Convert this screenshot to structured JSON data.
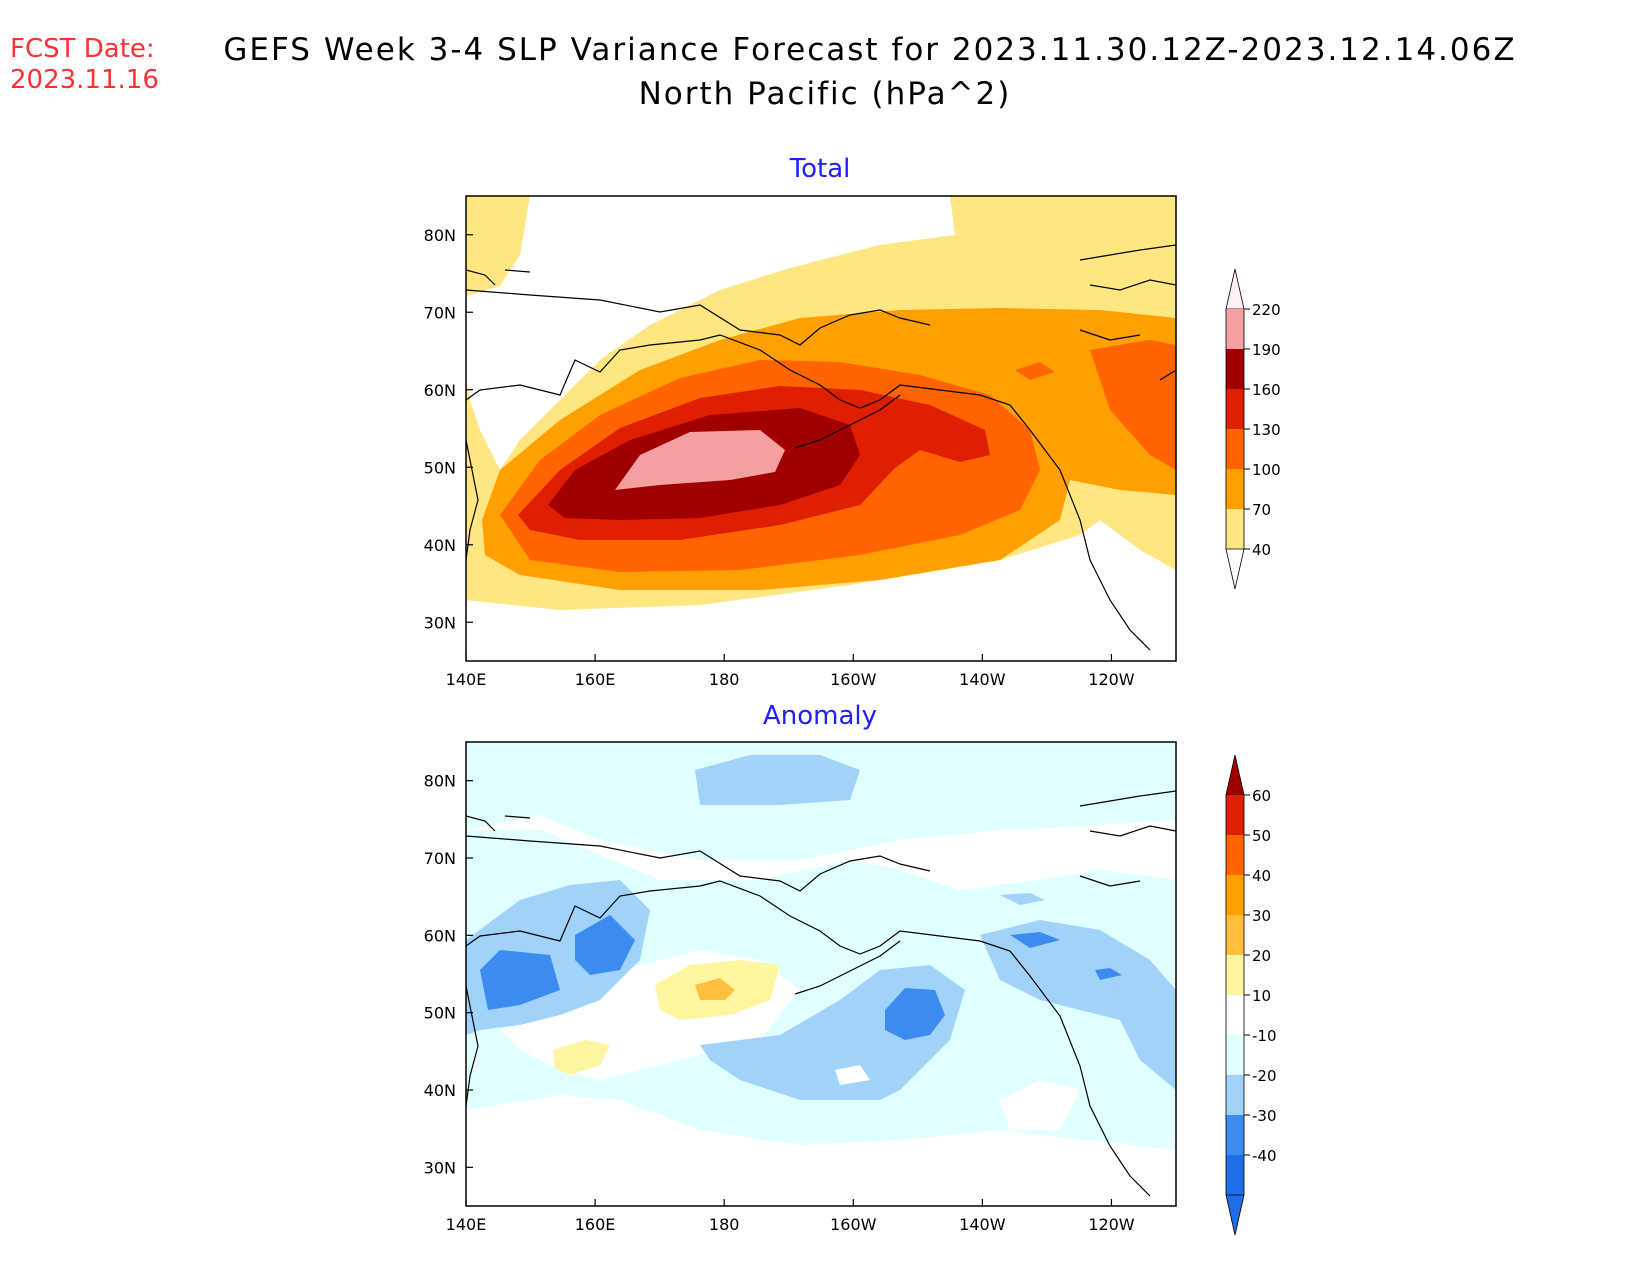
{
  "header": {
    "fcst_label": "FCST Date:",
    "fcst_date": "2023.11.16",
    "title": "GEFS Week 3-4 SLP Variance Forecast for 2023.11.30.12Z-2023.12.14.06Z",
    "subtitle": "North Pacific (hPa^2)"
  },
  "map": {
    "lat_labels": [
      "80N",
      "70N",
      "60N",
      "50N",
      "40N",
      "30N"
    ],
    "lat_values": [
      80,
      70,
      60,
      50,
      40,
      30
    ],
    "lon_labels": [
      "140E",
      "160E",
      "180",
      "160W",
      "140W",
      "120W"
    ],
    "lon_values": [
      140,
      160,
      180,
      200,
      220,
      240
    ],
    "lat_range": [
      25,
      85
    ],
    "lon_range": [
      140,
      250
    ]
  },
  "panels": [
    {
      "title": "Total",
      "colorbar": {
        "labels": [
          "220",
          "190",
          "160",
          "130",
          "100",
          "70",
          "40"
        ],
        "colors": [
          "#f5a0a0",
          "#a00000",
          "#e01e00",
          "#ff6400",
          "#ff9f00",
          "#ffe680"
        ],
        "top_arrow_color": "#fff0f0",
        "bottom_arrow_color": "#ffffff"
      }
    },
    {
      "title": "Anomaly",
      "colorbar": {
        "labels": [
          "60",
          "50",
          "40",
          "30",
          "20",
          "10",
          "-10",
          "-20",
          "-30",
          "-40"
        ],
        "colors": [
          "#e01e00",
          "#ff6400",
          "#ff9f00",
          "#ffbe3c",
          "#fff5a0",
          "#ffffff",
          "#e0ffff",
          "#a0d2fa",
          "#3c8cf0",
          "#1e6ee6"
        ],
        "top_arrow_color": "#a00000",
        "bottom_arrow_color": "#1e6ee6"
      }
    }
  ]
}
